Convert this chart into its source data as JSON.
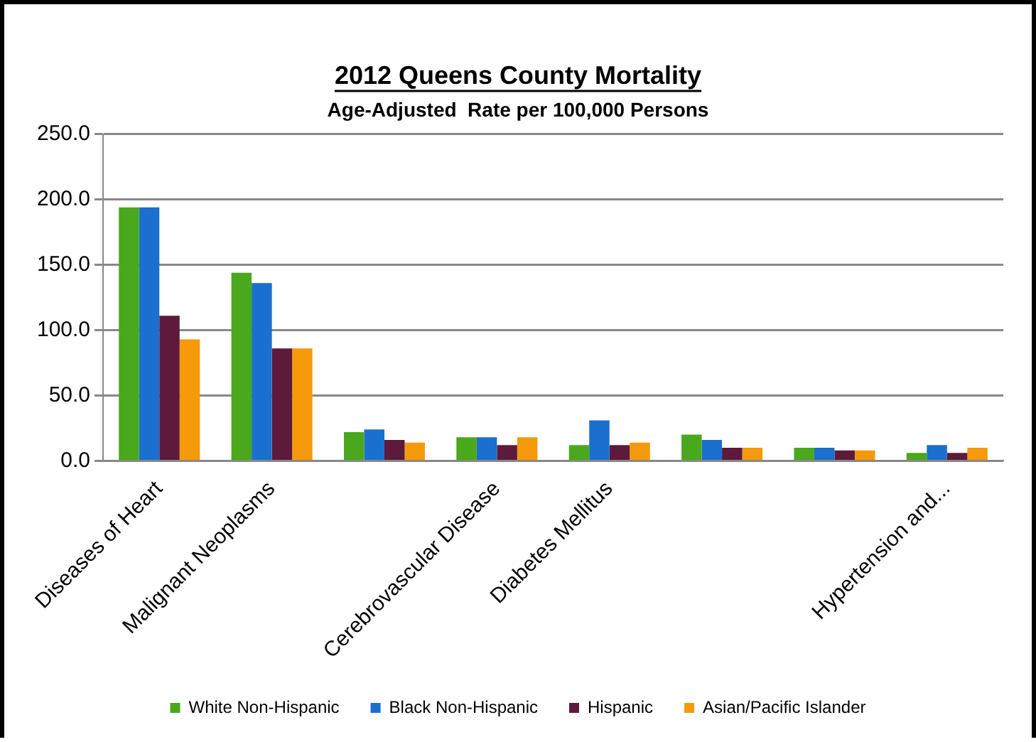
{
  "chart_data": {
    "type": "bar",
    "title": "2012 Queens County Mortality",
    "subtitle": "Age-Adjusted  Rate per 100,000 Persons",
    "categories": [
      "Diseases of Heart",
      "Malignant Neoplasms",
      null,
      "Cerebrovascular Disease",
      "Diabetes Mellitus",
      null,
      null,
      "Hypertension and..."
    ],
    "series": [
      {
        "name": "White Non-Hispanic",
        "color": "#4aa81c",
        "values": [
          194,
          144,
          22,
          18,
          12,
          20,
          10,
          6
        ]
      },
      {
        "name": "Black Non-Hispanic",
        "color": "#1a6fcf",
        "values": [
          194,
          136,
          24,
          18,
          31,
          16,
          10,
          12
        ]
      },
      {
        "name": "Hispanic",
        "color": "#5e1a3a",
        "values": [
          111,
          86,
          16,
          12,
          12,
          10,
          8,
          6
        ]
      },
      {
        "name": "Asian/Pacific Islander",
        "color": "#f59a0a",
        "values": [
          93,
          86,
          14,
          18,
          14,
          10,
          8,
          10
        ]
      }
    ],
    "ylim": [
      0,
      250
    ],
    "yticks": [
      {
        "value": 0,
        "label": "0.0"
      },
      {
        "value": 50,
        "label": "50.0"
      },
      {
        "value": 100,
        "label": "100.0"
      },
      {
        "value": 150,
        "label": "150.0"
      },
      {
        "value": 200,
        "label": "200.0"
      },
      {
        "value": 250,
        "label": "250.0"
      }
    ],
    "grid": "y",
    "legend": "bottom"
  }
}
